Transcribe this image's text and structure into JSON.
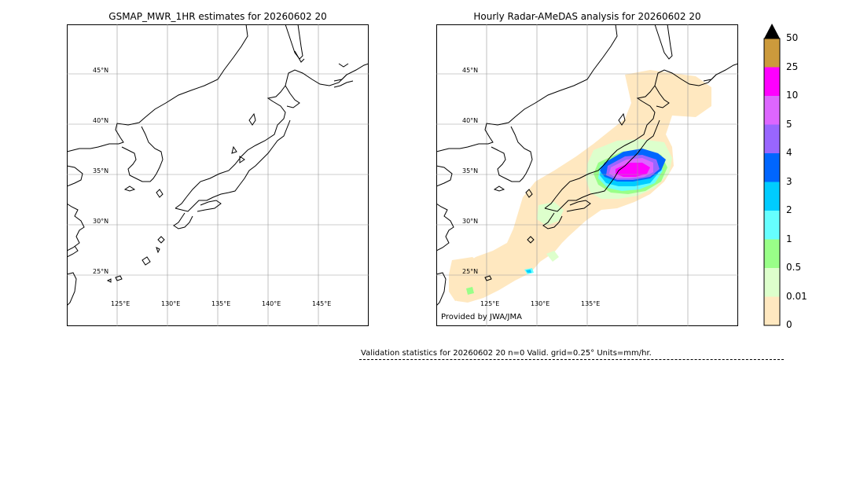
{
  "left_map": {
    "title": "GSMAP_MWR_1HR estimates for 20260602 20",
    "lat_labels": [
      "45°N",
      "40°N",
      "35°N",
      "30°N",
      "25°N"
    ],
    "lon_labels": [
      "125°E",
      "130°E",
      "135°E",
      "140°E",
      "145°E"
    ]
  },
  "right_map": {
    "title": "Hourly Radar-AMeDAS analysis for 20260602 20",
    "lat_labels": [
      "45°N",
      "40°N",
      "35°N",
      "30°N",
      "25°N"
    ],
    "lon_labels": [
      "125°E",
      "130°E",
      "135°E"
    ],
    "credit": "Provided by JWA/JMA"
  },
  "colorbar": {
    "ticks": [
      "50",
      "25",
      "10",
      "5",
      "4",
      "3",
      "2",
      "1",
      "0.5",
      "0.01",
      "0"
    ],
    "colors": [
      "#cc9a3c",
      "#ff00ff",
      "#dd66ff",
      "#9966ff",
      "#0066ff",
      "#00ccff",
      "#66ffff",
      "#99ff88",
      "#ddffcc",
      "#ffe8c0"
    ],
    "extend_color": "#000000"
  },
  "stats": {
    "text": "Validation statistics for 20260602 20  n=0 Valid. grid=0.25° Units=mm/hr."
  }
}
